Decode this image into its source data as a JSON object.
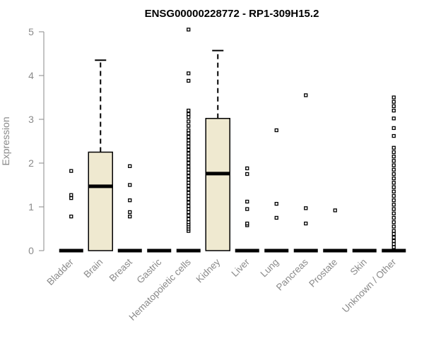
{
  "chart_data": {
    "type": "boxplot",
    "title": "ENSG00000228772 - RP1-309H15.2",
    "ylabel": "Expression",
    "xlabel": "",
    "ylim": [
      0,
      5.15
    ],
    "yticks": [
      0,
      1,
      2,
      3,
      4,
      5
    ],
    "grid": false,
    "legend": "none",
    "box_fill": "#efe9d0",
    "box_stroke": "#000000",
    "axis_color": "#8a8a8a",
    "categories": [
      "Bladder",
      "Brain",
      "Breast",
      "Gastric",
      "Hematopoietic cells",
      "Kidney",
      "Liver",
      "Lung",
      "Pancreas",
      "Prostate",
      "Skin",
      "Unknown / Other"
    ],
    "boxes": [
      {
        "category": "Bladder",
        "q1": 0,
        "median": 0,
        "q3": 0,
        "whisker_low": 0,
        "whisker_high": 0,
        "outliers": [
          0.78,
          1.2,
          1.27,
          1.82
        ]
      },
      {
        "category": "Brain",
        "q1": 0,
        "median": 1.47,
        "q3": 2.25,
        "whisker_low": 0,
        "whisker_high": 4.35,
        "outliers": []
      },
      {
        "category": "Breast",
        "q1": 0,
        "median": 0,
        "q3": 0,
        "whisker_low": 0,
        "whisker_high": 0,
        "outliers": [
          0.78,
          0.88,
          1.15,
          1.5,
          1.93
        ]
      },
      {
        "category": "Gastric",
        "q1": 0,
        "median": 0,
        "q3": 0,
        "whisker_low": 0,
        "whisker_high": 0,
        "outliers": []
      },
      {
        "category": "Hematopoietic cells",
        "q1": 0,
        "median": 0,
        "q3": 0,
        "whisker_low": 0,
        "whisker_high": 0,
        "outliers": [
          0.45,
          0.5,
          0.55,
          0.6,
          0.65,
          0.72,
          0.8,
          0.88,
          0.95,
          1.02,
          1.1,
          1.18,
          1.25,
          1.32,
          1.4,
          1.48,
          1.55,
          1.62,
          1.7,
          1.78,
          1.85,
          1.92,
          2.0,
          2.08,
          2.15,
          2.22,
          2.3,
          2.38,
          2.45,
          2.52,
          2.6,
          2.68,
          2.75,
          2.85,
          2.95,
          3.05,
          3.12,
          3.2,
          3.88,
          4.05,
          5.05
        ]
      },
      {
        "category": "Kidney",
        "q1": 0,
        "median": 1.76,
        "q3": 3.02,
        "whisker_low": 0,
        "whisker_high": 4.57,
        "outliers": []
      },
      {
        "category": "Liver",
        "q1": 0,
        "median": 0,
        "q3": 0,
        "whisker_low": 0,
        "whisker_high": 0,
        "outliers": [
          0.58,
          0.62,
          0.95,
          1.12,
          1.75,
          1.88
        ]
      },
      {
        "category": "Lung",
        "q1": 0,
        "median": 0,
        "q3": 0,
        "whisker_low": 0,
        "whisker_high": 0,
        "outliers": [
          0.75,
          1.07,
          2.75
        ]
      },
      {
        "category": "Pancreas",
        "q1": 0,
        "median": 0,
        "q3": 0,
        "whisker_low": 0,
        "whisker_high": 0,
        "outliers": [
          0.62,
          0.97,
          3.55
        ]
      },
      {
        "category": "Prostate",
        "q1": 0,
        "median": 0,
        "q3": 0,
        "whisker_low": 0,
        "whisker_high": 0,
        "outliers": [
          0.92
        ]
      },
      {
        "category": "Skin",
        "q1": 0,
        "median": 0,
        "q3": 0,
        "whisker_low": 0,
        "whisker_high": 0,
        "outliers": []
      },
      {
        "category": "Unknown / Other",
        "q1": 0,
        "median": 0,
        "q3": 0,
        "whisker_low": 0,
        "whisker_high": 0,
        "outliers": [
          0.08,
          0.15,
          0.22,
          0.3,
          0.38,
          0.45,
          0.55,
          0.65,
          0.75,
          0.85,
          0.95,
          1.05,
          1.15,
          1.25,
          1.35,
          1.45,
          1.55,
          1.65,
          1.75,
          1.85,
          1.95,
          2.05,
          2.15,
          2.25,
          2.35,
          2.62,
          2.8,
          3.02,
          3.2,
          3.3,
          3.4,
          3.5
        ]
      }
    ]
  }
}
